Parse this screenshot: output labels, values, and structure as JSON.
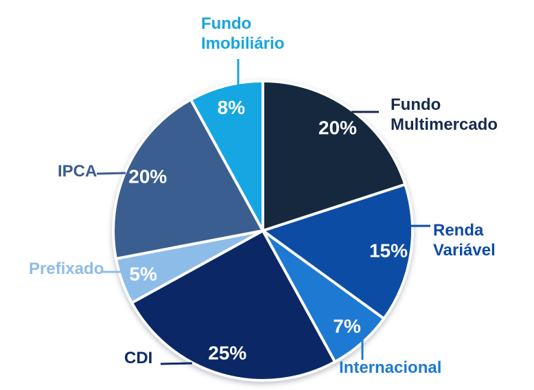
{
  "chart_data": {
    "type": "pie",
    "title": "",
    "unit": "%",
    "direction": "clockwise",
    "start_angle_deg": 0,
    "total": 100,
    "legend_position": "none",
    "labels_placement": "outside-with-leader-lines",
    "categories": [
      "Fundo Multimercado",
      "Renda Variável",
      "Internacional",
      "CDI",
      "Prefixado",
      "IPCA",
      "Fundo Imobiliário"
    ],
    "values": [
      20,
      15,
      7,
      25,
      5,
      20,
      8
    ],
    "slices": [
      {
        "label": "Fundo Multimercado",
        "value": 20,
        "value_label": "20%",
        "color": "#15283E",
        "label_color": "#162A4D"
      },
      {
        "label": "Renda Variável",
        "value": 15,
        "value_label": "15%",
        "color": "#0D4CA4",
        "label_color": "#0E4AA5"
      },
      {
        "label": "Internacional",
        "value": 7,
        "value_label": "7%",
        "color": "#1E79D3",
        "label_color": "#1E79D3"
      },
      {
        "label": "CDI",
        "value": 25,
        "value_label": "25%",
        "color": "#0C2766",
        "label_color": "#0E2A66"
      },
      {
        "label": "Prefixado",
        "value": 5,
        "value_label": "5%",
        "color": "#8EBCE9",
        "label_color": "#8FBCE8"
      },
      {
        "label": "IPCA",
        "value": 20,
        "value_label": "20%",
        "color": "#3B5E90",
        "label_color": "#3A5C8F"
      },
      {
        "label": "Fundo Imobiliário",
        "value": 8,
        "value_label": "8%",
        "color": "#16A7E2",
        "label_color": "#18A4DE"
      }
    ],
    "value_label_color": "#FFFFFF",
    "slice_separator_color": "#FFFFFF"
  }
}
